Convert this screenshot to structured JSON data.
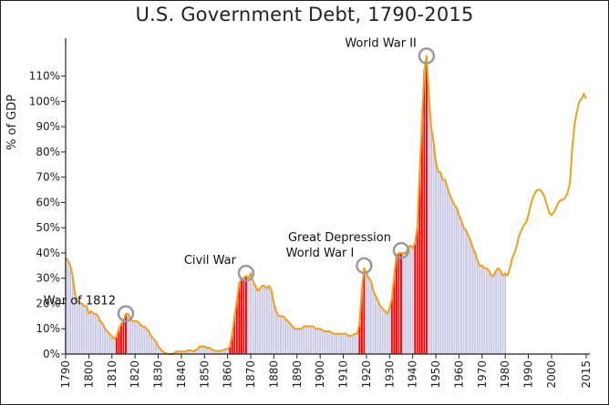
{
  "chart_data": {
    "type": "area",
    "title": "U.S. Government Debt, 1790-2015",
    "ylabel": "% of GDP",
    "xlabel": "",
    "xlim": [
      1790,
      2015
    ],
    "ylim": [
      0,
      120
    ],
    "yticks": [
      0,
      10,
      20,
      30,
      40,
      50,
      60,
      70,
      80,
      90,
      100,
      110
    ],
    "ytick_labels": [
      "0%",
      "10%",
      "20%",
      "30%",
      "40%",
      "50%",
      "60%",
      "70%",
      "80%",
      "90%",
      "100%",
      "110%"
    ],
    "xticks": [
      1790,
      1800,
      1810,
      1820,
      1830,
      1840,
      1850,
      1860,
      1870,
      1880,
      1890,
      1900,
      1910,
      1920,
      1930,
      1940,
      1950,
      1960,
      1970,
      1980,
      1990,
      2000,
      2015
    ],
    "xtick_labels": [
      "1790",
      "1800",
      "1810",
      "1820",
      "1830",
      "1840",
      "1850",
      "1860",
      "1870",
      "1880",
      "1890",
      "1900",
      "1910",
      "1920",
      "1930",
      "1940",
      "1950",
      "1960",
      "1970",
      "1980",
      "1990",
      "2000",
      "2015"
    ],
    "grid": false,
    "colors": {
      "line": "#f0a020",
      "bars": "#c9c9e6",
      "war_bars": "#ff0000",
      "circle": "#9a9a9a"
    },
    "series": [
      {
        "values": [
          [
            1790,
            38
          ],
          [
            1791,
            37
          ],
          [
            1792,
            35
          ],
          [
            1793,
            31
          ],
          [
            1794,
            24
          ],
          [
            1795,
            21
          ],
          [
            1796,
            20
          ],
          [
            1797,
            20
          ],
          [
            1798,
            19
          ],
          [
            1799,
            19
          ],
          [
            1800,
            16
          ],
          [
            1801,
            17
          ],
          [
            1802,
            16
          ],
          [
            1803,
            16
          ],
          [
            1804,
            15
          ],
          [
            1805,
            13
          ],
          [
            1806,
            12
          ],
          [
            1807,
            10
          ],
          [
            1808,
            9
          ],
          [
            1809,
            8
          ],
          [
            1810,
            7
          ],
          [
            1811,
            6
          ],
          [
            1812,
            7
          ],
          [
            1813,
            10
          ],
          [
            1814,
            12
          ],
          [
            1815,
            13
          ],
          [
            1816,
            16
          ],
          [
            1817,
            16
          ],
          [
            1818,
            14
          ],
          [
            1819,
            13
          ],
          [
            1820,
            13
          ],
          [
            1821,
            13
          ],
          [
            1822,
            12
          ],
          [
            1823,
            11
          ],
          [
            1824,
            11
          ],
          [
            1825,
            10
          ],
          [
            1826,
            9
          ],
          [
            1827,
            7
          ],
          [
            1828,
            6
          ],
          [
            1829,
            5
          ],
          [
            1830,
            3
          ],
          [
            1831,
            2
          ],
          [
            1832,
            1
          ],
          [
            1833,
            0.4
          ],
          [
            1834,
            0.2
          ],
          [
            1835,
            0
          ],
          [
            1836,
            0
          ],
          [
            1837,
            0.5
          ],
          [
            1838,
            1
          ],
          [
            1839,
            1
          ],
          [
            1840,
            1
          ],
          [
            1841,
            1
          ],
          [
            1842,
            1
          ],
          [
            1843,
            1.5
          ],
          [
            1844,
            1.5
          ],
          [
            1845,
            1
          ],
          [
            1846,
            1.5
          ],
          [
            1847,
            2
          ],
          [
            1848,
            3
          ],
          [
            1849,
            3
          ],
          [
            1850,
            3
          ],
          [
            1851,
            2.5
          ],
          [
            1852,
            2.5
          ],
          [
            1853,
            2
          ],
          [
            1854,
            1.5
          ],
          [
            1855,
            1.2
          ],
          [
            1856,
            1.2
          ],
          [
            1857,
            1.2
          ],
          [
            1858,
            1.5
          ],
          [
            1859,
            2
          ],
          [
            1860,
            2
          ],
          [
            1861,
            3
          ],
          [
            1862,
            8
          ],
          [
            1863,
            15
          ],
          [
            1864,
            21
          ],
          [
            1865,
            28
          ],
          [
            1866,
            30
          ],
          [
            1867,
            30
          ],
          [
            1868,
            31
          ],
          [
            1869,
            30
          ],
          [
            1870,
            32
          ],
          [
            1871,
            29
          ],
          [
            1872,
            27
          ],
          [
            1873,
            25
          ],
          [
            1874,
            26
          ],
          [
            1875,
            27
          ],
          [
            1876,
            27
          ],
          [
            1877,
            26
          ],
          [
            1878,
            27
          ],
          [
            1879,
            25
          ],
          [
            1880,
            20
          ],
          [
            1881,
            17
          ],
          [
            1882,
            15
          ],
          [
            1883,
            15
          ],
          [
            1884,
            15
          ],
          [
            1885,
            14
          ],
          [
            1886,
            13
          ],
          [
            1887,
            12
          ],
          [
            1888,
            11
          ],
          [
            1889,
            10
          ],
          [
            1890,
            10
          ],
          [
            1891,
            10
          ],
          [
            1892,
            10
          ],
          [
            1893,
            11
          ],
          [
            1894,
            11
          ],
          [
            1895,
            11
          ],
          [
            1896,
            11
          ],
          [
            1897,
            11
          ],
          [
            1898,
            10
          ],
          [
            1899,
            10
          ],
          [
            1900,
            10
          ],
          [
            1901,
            9.5
          ],
          [
            1902,
            9
          ],
          [
            1903,
            9
          ],
          [
            1904,
            9
          ],
          [
            1905,
            8.5
          ],
          [
            1906,
            8
          ],
          [
            1907,
            8
          ],
          [
            1908,
            8
          ],
          [
            1909,
            8
          ],
          [
            1910,
            8
          ],
          [
            1911,
            8
          ],
          [
            1912,
            7.5
          ],
          [
            1913,
            7
          ],
          [
            1914,
            7.5
          ],
          [
            1915,
            8
          ],
          [
            1916,
            8
          ],
          [
            1917,
            12
          ],
          [
            1918,
            25
          ],
          [
            1919,
            34
          ],
          [
            1920,
            32
          ],
          [
            1921,
            30
          ],
          [
            1922,
            29
          ],
          [
            1923,
            25
          ],
          [
            1924,
            23
          ],
          [
            1925,
            21
          ],
          [
            1926,
            19
          ],
          [
            1927,
            18
          ],
          [
            1928,
            17
          ],
          [
            1929,
            16
          ],
          [
            1930,
            18
          ],
          [
            1931,
            22
          ],
          [
            1932,
            31
          ],
          [
            1933,
            39
          ],
          [
            1934,
            40
          ],
          [
            1935,
            40
          ],
          [
            1936,
            40
          ],
          [
            1937,
            40
          ],
          [
            1938,
            42
          ],
          [
            1939,
            43
          ],
          [
            1940,
            42
          ],
          [
            1941,
            44
          ],
          [
            1942,
            50
          ],
          [
            1943,
            72
          ],
          [
            1944,
            92
          ],
          [
            1945,
            112
          ],
          [
            1946,
            118
          ],
          [
            1947,
            102
          ],
          [
            1948,
            90
          ],
          [
            1949,
            84
          ],
          [
            1950,
            76
          ],
          [
            1951,
            72
          ],
          [
            1952,
            72
          ],
          [
            1953,
            69
          ],
          [
            1954,
            69
          ],
          [
            1955,
            66
          ],
          [
            1956,
            63
          ],
          [
            1957,
            61
          ],
          [
            1958,
            59
          ],
          [
            1959,
            58
          ],
          [
            1960,
            55
          ],
          [
            1961,
            53
          ],
          [
            1962,
            50
          ],
          [
            1963,
            49
          ],
          [
            1964,
            47
          ],
          [
            1965,
            45
          ],
          [
            1966,
            42
          ],
          [
            1967,
            40
          ],
          [
            1968,
            37
          ],
          [
            1969,
            35
          ],
          [
            1970,
            35
          ],
          [
            1971,
            34
          ],
          [
            1972,
            34
          ],
          [
            1973,
            33
          ],
          [
            1974,
            31
          ],
          [
            1975,
            31
          ],
          [
            1976,
            33
          ],
          [
            1977,
            34
          ],
          [
            1978,
            33
          ],
          [
            1979,
            31
          ],
          [
            1980,
            32
          ],
          [
            1981,
            31
          ],
          [
            1982,
            34
          ],
          [
            1983,
            38
          ],
          [
            1984,
            40
          ],
          [
            1985,
            43
          ],
          [
            1986,
            47
          ],
          [
            1987,
            49
          ],
          [
            1988,
            51
          ],
          [
            1989,
            52
          ],
          [
            1990,
            55
          ],
          [
            1991,
            59
          ],
          [
            1992,
            62
          ],
          [
            1993,
            64
          ],
          [
            1994,
            65
          ],
          [
            1995,
            65
          ],
          [
            1996,
            64
          ],
          [
            1997,
            62
          ],
          [
            1998,
            59
          ],
          [
            1999,
            56
          ],
          [
            2000,
            55
          ],
          [
            2001,
            56
          ],
          [
            2002,
            58
          ],
          [
            2003,
            60
          ],
          [
            2004,
            61
          ],
          [
            2005,
            61
          ],
          [
            2006,
            62
          ],
          [
            2007,
            64
          ],
          [
            2008,
            68
          ],
          [
            2009,
            82
          ],
          [
            2010,
            91
          ],
          [
            2011,
            96
          ],
          [
            2012,
            100
          ],
          [
            2013,
            101
          ],
          [
            2014,
            103
          ],
          [
            2015,
            101
          ]
        ]
      }
    ],
    "bars_until": 1980,
    "war_periods": [
      [
        1812,
        1816
      ],
      [
        1861,
        1868
      ],
      [
        1917,
        1919
      ],
      [
        1931,
        1935
      ],
      [
        1941,
        1946
      ]
    ],
    "annotations": [
      {
        "text": "War of 1812",
        "x": 1816,
        "y": 16
      },
      {
        "text": "Civil War",
        "x": 1868,
        "y": 32
      },
      {
        "text": "World War I",
        "x": 1919,
        "y": 35
      },
      {
        "text": "Great Depression",
        "x": 1935,
        "y": 41
      },
      {
        "text": "World War II",
        "x": 1946,
        "y": 118
      }
    ]
  }
}
